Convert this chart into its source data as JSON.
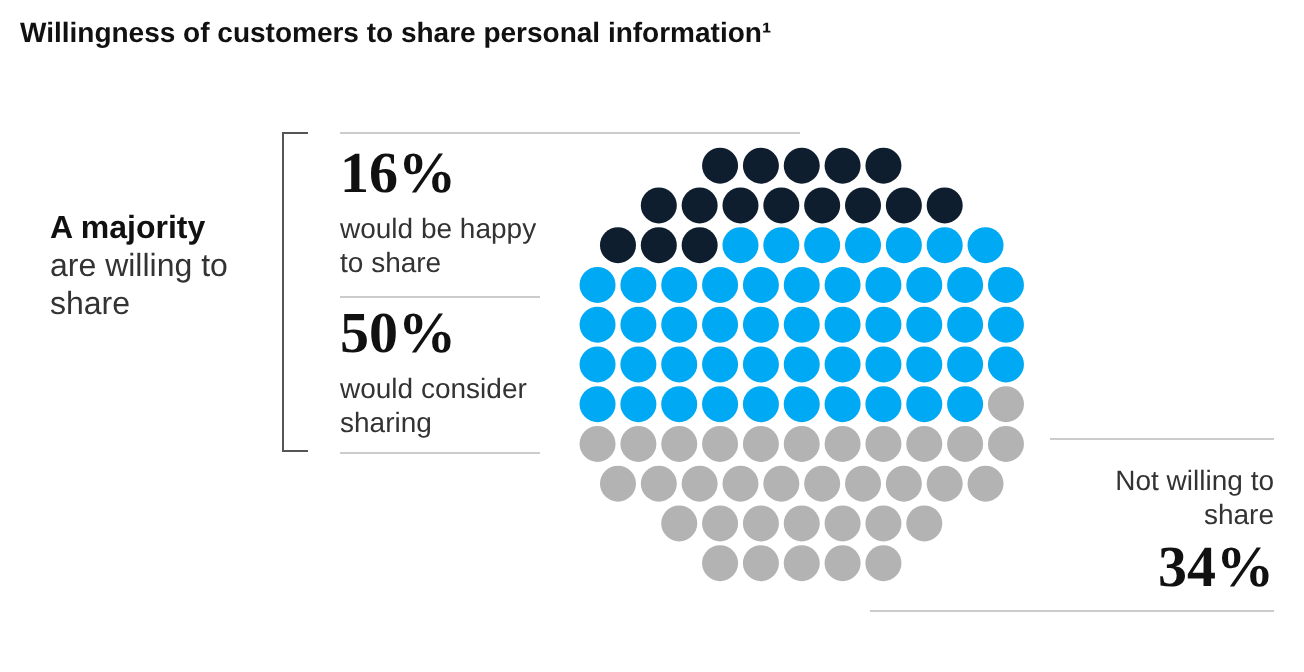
{
  "chart_data": {
    "type": "other",
    "title": "Willingness of customers to share personal information¹",
    "categories": [
      "would be happy to share",
      "would consider sharing",
      "Not willing to share"
    ],
    "values": [
      16,
      50,
      34
    ],
    "value_labels": [
      "16%",
      "50%",
      "34%"
    ],
    "colors": [
      "#0f1e2e",
      "#00a9f4",
      "#b3b3b3"
    ],
    "annotations": [
      "A majority",
      "are willing to share"
    ]
  }
}
